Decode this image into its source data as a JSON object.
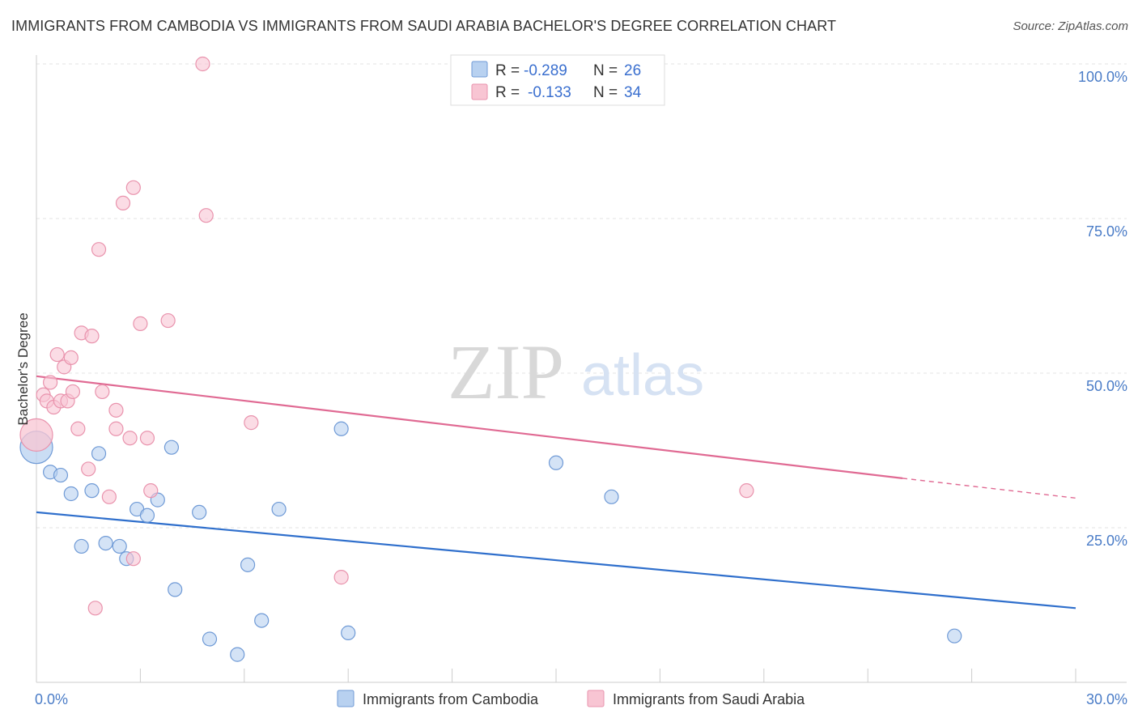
{
  "title": "IMMIGRANTS FROM CAMBODIA VS IMMIGRANTS FROM SAUDI ARABIA BACHELOR'S DEGREE CORRELATION CHART",
  "source": "Source: ZipAtlas.com",
  "watermark": {
    "zip": "ZIP",
    "atlas": "atlas"
  },
  "colors": {
    "cambodia_fill": "#b8d1f0",
    "cambodia_stroke": "#6f9ad6",
    "cambodia_line": "#2f6fcc",
    "saudi_fill": "#f8c5d3",
    "saudi_stroke": "#e993ad",
    "saudi_line": "#e06a93",
    "tick_label": "#4a7cc7",
    "grid": "#e3e3e3"
  },
  "legend": {
    "rows": [
      {
        "r_label": "R =",
        "r_value": "-0.289",
        "n_label": "N =",
        "n_value": "26"
      },
      {
        "r_label": "R =",
        "r_value": "-0.133",
        "n_label": "N =",
        "n_value": "34"
      }
    ]
  },
  "chart_data": {
    "type": "scatter",
    "title": "IMMIGRANTS FROM CAMBODIA VS IMMIGRANTS FROM SAUDI ARABIA BACHELOR'S DEGREE CORRELATION CHART",
    "xlabel": "",
    "ylabel": "Bachelor's Degree",
    "xlim": [
      0,
      30
    ],
    "ylim": [
      0,
      100
    ],
    "x_tick_labels": [
      "0.0%",
      "30.0%"
    ],
    "y_ticks": [
      25,
      50,
      75,
      100
    ],
    "y_tick_labels": [
      "25.0%",
      "50.0%",
      "75.0%",
      "100.0%"
    ],
    "grid": true,
    "legend_position": "top-center",
    "series": [
      {
        "name": "Immigrants from Cambodia",
        "r": -0.289,
        "n": 26,
        "trend": {
          "x0": 0,
          "y0": 27.5,
          "x1": 30,
          "y1": 12
        },
        "points": [
          {
            "x": 0.0,
            "y": 38,
            "big": true
          },
          {
            "x": 0.4,
            "y": 34
          },
          {
            "x": 0.7,
            "y": 33.5
          },
          {
            "x": 1.0,
            "y": 30.5
          },
          {
            "x": 1.3,
            "y": 22
          },
          {
            "x": 1.6,
            "y": 31
          },
          {
            "x": 1.8,
            "y": 37
          },
          {
            "x": 2.0,
            "y": 22.5
          },
          {
            "x": 2.4,
            "y": 22
          },
          {
            "x": 2.6,
            "y": 20
          },
          {
            "x": 2.9,
            "y": 28
          },
          {
            "x": 3.2,
            "y": 27
          },
          {
            "x": 3.5,
            "y": 29.5
          },
          {
            "x": 3.9,
            "y": 38
          },
          {
            "x": 4.0,
            "y": 15
          },
          {
            "x": 4.7,
            "y": 27.5
          },
          {
            "x": 5.0,
            "y": 7
          },
          {
            "x": 5.8,
            "y": 4.5
          },
          {
            "x": 6.1,
            "y": 19
          },
          {
            "x": 6.5,
            "y": 10
          },
          {
            "x": 7.0,
            "y": 28
          },
          {
            "x": 8.8,
            "y": 41
          },
          {
            "x": 9.0,
            "y": 8
          },
          {
            "x": 15.0,
            "y": 35.5
          },
          {
            "x": 16.6,
            "y": 30
          },
          {
            "x": 26.5,
            "y": 7.5
          }
        ]
      },
      {
        "name": "Immigrants from Saudi Arabia",
        "r": -0.133,
        "n": 34,
        "trend": {
          "x0": 0,
          "y0": 49.5,
          "x1": 25,
          "y1": 33,
          "dashed_to_x": 30,
          "dashed_to_y": 29.8
        },
        "points": [
          {
            "x": 0.0,
            "y": 40,
            "big": true
          },
          {
            "x": 0.2,
            "y": 46.5
          },
          {
            "x": 0.3,
            "y": 45.5
          },
          {
            "x": 0.4,
            "y": 48.5
          },
          {
            "x": 0.5,
            "y": 44.5
          },
          {
            "x": 0.6,
            "y": 53
          },
          {
            "x": 0.7,
            "y": 45.5
          },
          {
            "x": 0.8,
            "y": 51
          },
          {
            "x": 0.9,
            "y": 45.5
          },
          {
            "x": 1.0,
            "y": 52.5
          },
          {
            "x": 1.05,
            "y": 47
          },
          {
            "x": 1.2,
            "y": 41
          },
          {
            "x": 1.3,
            "y": 56.5
          },
          {
            "x": 1.5,
            "y": 34.5
          },
          {
            "x": 1.6,
            "y": 56
          },
          {
            "x": 1.7,
            "y": 12
          },
          {
            "x": 1.8,
            "y": 70
          },
          {
            "x": 1.9,
            "y": 47
          },
          {
            "x": 2.1,
            "y": 30
          },
          {
            "x": 2.3,
            "y": 44
          },
          {
            "x": 2.3,
            "y": 41
          },
          {
            "x": 2.5,
            "y": 77.5
          },
          {
            "x": 2.7,
            "y": 39.5
          },
          {
            "x": 2.8,
            "y": 80
          },
          {
            "x": 2.8,
            "y": 20
          },
          {
            "x": 3.0,
            "y": 58
          },
          {
            "x": 3.2,
            "y": 39.5
          },
          {
            "x": 3.3,
            "y": 31
          },
          {
            "x": 3.8,
            "y": 58.5
          },
          {
            "x": 4.8,
            "y": 100
          },
          {
            "x": 4.9,
            "y": 75.5
          },
          {
            "x": 6.2,
            "y": 42
          },
          {
            "x": 8.8,
            "y": 17
          },
          {
            "x": 20.5,
            "y": 31
          }
        ]
      }
    ]
  }
}
